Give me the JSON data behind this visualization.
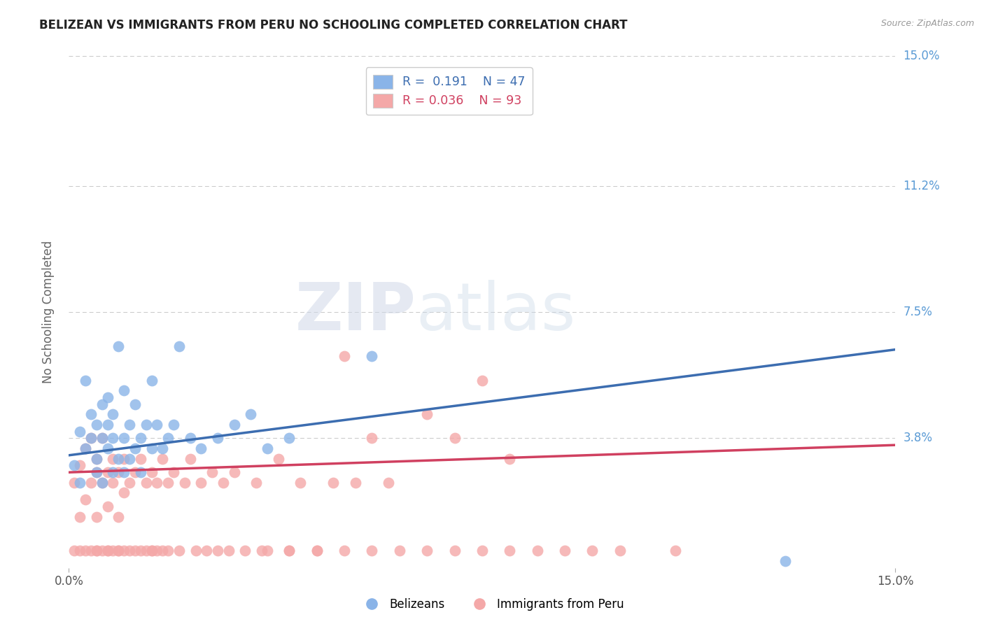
{
  "title": "BELIZEAN VS IMMIGRANTS FROM PERU NO SCHOOLING COMPLETED CORRELATION CHART",
  "source_text": "Source: ZipAtlas.com",
  "ylabel": "No Schooling Completed",
  "xlim": [
    0,
    0.15
  ],
  "ylim": [
    0,
    0.15
  ],
  "ytick_values": [
    0.0,
    0.038,
    0.075,
    0.112,
    0.15
  ],
  "ytick_labels": [
    "",
    "3.8%",
    "7.5%",
    "11.2%",
    "15.0%"
  ],
  "legend_blue_r": "R =  0.191",
  "legend_blue_n": "N = 47",
  "legend_pink_r": "R = 0.036",
  "legend_pink_n": "N = 93",
  "blue_color": "#8ab4e8",
  "pink_color": "#f4a8a8",
  "blue_line_color": "#3c6db0",
  "pink_line_color": "#d04060",
  "blue_trend_x": [
    0.0,
    0.15
  ],
  "blue_trend_y": [
    0.033,
    0.064
  ],
  "pink_trend_x": [
    0.0,
    0.15
  ],
  "pink_trend_y": [
    0.028,
    0.036
  ],
  "background_color": "#ffffff",
  "grid_color": "#b0b0b0",
  "title_color": "#222222",
  "axis_label_color": "#666666",
  "right_tick_color": "#5b9bd5",
  "blue_scatter_x": [
    0.001,
    0.002,
    0.002,
    0.003,
    0.003,
    0.004,
    0.004,
    0.005,
    0.005,
    0.005,
    0.006,
    0.006,
    0.006,
    0.007,
    0.007,
    0.007,
    0.008,
    0.008,
    0.008,
    0.009,
    0.009,
    0.01,
    0.01,
    0.01,
    0.011,
    0.011,
    0.012,
    0.012,
    0.013,
    0.013,
    0.014,
    0.015,
    0.015,
    0.016,
    0.017,
    0.018,
    0.019,
    0.02,
    0.022,
    0.024,
    0.027,
    0.03,
    0.033,
    0.036,
    0.04,
    0.055,
    0.13
  ],
  "blue_scatter_y": [
    0.03,
    0.04,
    0.025,
    0.035,
    0.055,
    0.038,
    0.045,
    0.032,
    0.042,
    0.028,
    0.038,
    0.048,
    0.025,
    0.035,
    0.042,
    0.05,
    0.028,
    0.038,
    0.045,
    0.032,
    0.065,
    0.038,
    0.028,
    0.052,
    0.042,
    0.032,
    0.035,
    0.048,
    0.038,
    0.028,
    0.042,
    0.055,
    0.035,
    0.042,
    0.035,
    0.038,
    0.042,
    0.065,
    0.038,
    0.035,
    0.038,
    0.042,
    0.045,
    0.035,
    0.038,
    0.062,
    0.002
  ],
  "pink_scatter_x": [
    0.001,
    0.001,
    0.002,
    0.002,
    0.002,
    0.003,
    0.003,
    0.003,
    0.004,
    0.004,
    0.004,
    0.005,
    0.005,
    0.005,
    0.005,
    0.006,
    0.006,
    0.006,
    0.007,
    0.007,
    0.007,
    0.008,
    0.008,
    0.008,
    0.009,
    0.009,
    0.009,
    0.01,
    0.01,
    0.01,
    0.011,
    0.011,
    0.012,
    0.012,
    0.013,
    0.013,
    0.014,
    0.014,
    0.015,
    0.015,
    0.016,
    0.016,
    0.017,
    0.017,
    0.018,
    0.018,
    0.019,
    0.02,
    0.021,
    0.022,
    0.023,
    0.024,
    0.025,
    0.026,
    0.027,
    0.028,
    0.029,
    0.03,
    0.032,
    0.034,
    0.036,
    0.038,
    0.04,
    0.042,
    0.045,
    0.048,
    0.05,
    0.052,
    0.055,
    0.058,
    0.06,
    0.065,
    0.07,
    0.075,
    0.08,
    0.085,
    0.09,
    0.095,
    0.1,
    0.11,
    0.05,
    0.055,
    0.065,
    0.07,
    0.075,
    0.08,
    0.035,
    0.04,
    0.045,
    0.015,
    0.005,
    0.007,
    0.009
  ],
  "pink_scatter_y": [
    0.025,
    0.005,
    0.015,
    0.03,
    0.005,
    0.035,
    0.02,
    0.005,
    0.025,
    0.038,
    0.005,
    0.028,
    0.015,
    0.032,
    0.005,
    0.025,
    0.038,
    0.005,
    0.028,
    0.018,
    0.005,
    0.032,
    0.025,
    0.005,
    0.028,
    0.015,
    0.005,
    0.032,
    0.022,
    0.005,
    0.025,
    0.005,
    0.028,
    0.005,
    0.032,
    0.005,
    0.025,
    0.005,
    0.028,
    0.005,
    0.025,
    0.005,
    0.032,
    0.005,
    0.025,
    0.005,
    0.028,
    0.005,
    0.025,
    0.032,
    0.005,
    0.025,
    0.005,
    0.028,
    0.005,
    0.025,
    0.005,
    0.028,
    0.005,
    0.025,
    0.005,
    0.032,
    0.005,
    0.025,
    0.005,
    0.025,
    0.005,
    0.025,
    0.005,
    0.025,
    0.005,
    0.005,
    0.005,
    0.005,
    0.005,
    0.005,
    0.005,
    0.005,
    0.005,
    0.005,
    0.062,
    0.038,
    0.045,
    0.038,
    0.055,
    0.032,
    0.005,
    0.005,
    0.005,
    0.005,
    0.005,
    0.005,
    0.005
  ]
}
